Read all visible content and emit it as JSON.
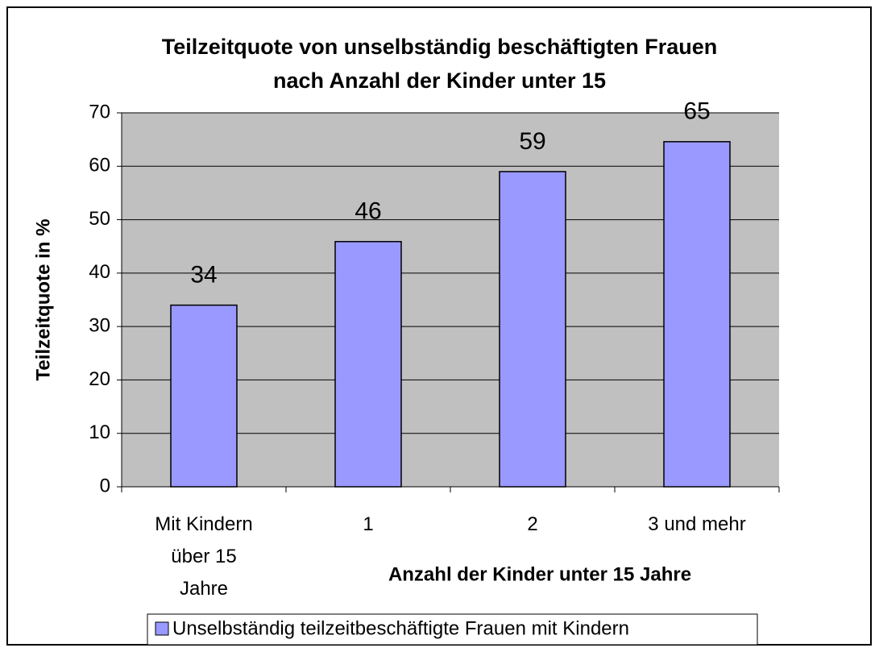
{
  "chart_data": {
    "type": "bar",
    "title": "Teilzeitquote von unselbständig beschäftigten Frauen\nnach Anzahl der Kinder unter 15",
    "categories": [
      "Mit Kindern\nüber 15\nJahre",
      "1",
      "2",
      "3 und mehr"
    ],
    "series": [
      {
        "name": "Unselbständig teilzeitbeschäftigte Frauen mit Kindern",
        "color": "#9999ff",
        "values": [
          34,
          45.9,
          59,
          64.6
        ],
        "value_labels": [
          "34",
          "46",
          "59",
          "65"
        ]
      }
    ],
    "xlabel": "Anzahl der Kinder unter 15 Jahre",
    "ylabel": "Teilzeitquote in %",
    "ylim": [
      0,
      70
    ],
    "yticks": [
      0,
      10,
      20,
      30,
      40,
      50,
      60,
      70
    ],
    "grid": true,
    "legend": "bottom"
  }
}
